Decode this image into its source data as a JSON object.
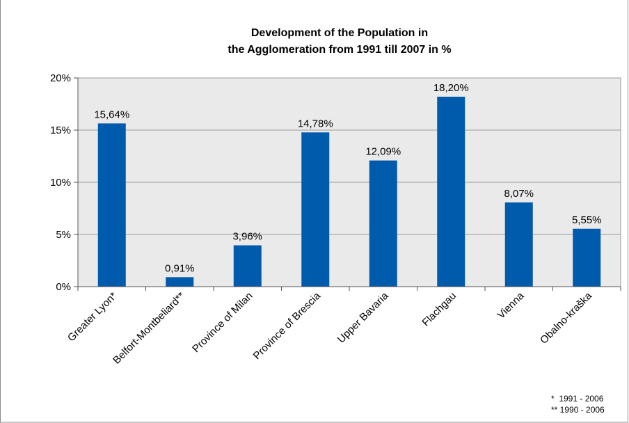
{
  "chart_data": {
    "type": "bar",
    "title_lines": [
      "Development of the Population in",
      "the Agglomeration from 1991 till 2007 in %"
    ],
    "categories": [
      "Greater Lyon*",
      "Belfort-Montbeliard**",
      "Province of Milan",
      "Province of Brescia",
      "Upper Bavaria",
      "Flachgau",
      "Vienna",
      "Obalno-kraška"
    ],
    "values": [
      15.64,
      0.91,
      3.96,
      14.78,
      12.09,
      18.2,
      8.07,
      5.55
    ],
    "data_labels": [
      "15,64%",
      "0,91%",
      "3,96%",
      "14,78%",
      "12,09%",
      "18,20%",
      "8,07%",
      "5,55%"
    ],
    "y_ticks": [
      0,
      5,
      10,
      15,
      20
    ],
    "y_tick_labels": [
      "0%",
      "5%",
      "10%",
      "15%",
      "20%"
    ],
    "ylim": [
      0,
      20
    ],
    "xlabel": "",
    "ylabel": "",
    "grid": true,
    "bar_color": "#005BAC",
    "plot_background": "#EAEAEA",
    "notes": [
      "*  1991 - 2006",
      "** 1990 - 2006"
    ]
  }
}
